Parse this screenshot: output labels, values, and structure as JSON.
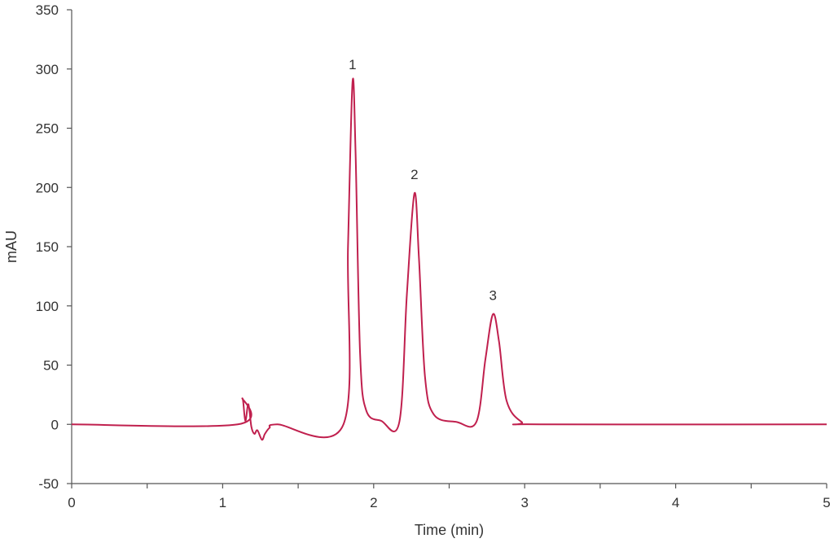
{
  "chart_data": {
    "type": "line",
    "title": "",
    "xlabel": "Time (min)",
    "ylabel": "mAU",
    "xlim": [
      0,
      5
    ],
    "ylim": [
      -50,
      350
    ],
    "x_ticks": [
      "0",
      "1",
      "2",
      "3",
      "4",
      "5"
    ],
    "x_minor_step": 0.5,
    "y_ticks": [
      "-50",
      "0",
      "50",
      "100",
      "150",
      "200",
      "250",
      "300",
      "350"
    ],
    "grid": false,
    "legend": "none",
    "line_color": "#c0204e",
    "series": [
      {
        "x": [
          0,
          1.1,
          1.13,
          1.15,
          1.17,
          1.19,
          1.21,
          1.23,
          1.26,
          1.28,
          1.31,
          1.36,
          1.8,
          1.83,
          1.86,
          1.88,
          1.91,
          1.95,
          2.05,
          2.17,
          2.22,
          2.27,
          2.3,
          2.34,
          2.4,
          2.55,
          2.68,
          2.74,
          2.79,
          2.83,
          2.88,
          2.98,
          3.1,
          5.0
        ],
        "y": [
          0,
          0,
          22,
          3,
          17,
          -2,
          -8,
          -5,
          -13,
          -8,
          -3,
          0,
          0,
          150,
          289,
          230,
          60,
          12,
          3,
          2,
          110,
          195,
          140,
          40,
          8,
          2,
          2,
          55,
          93,
          70,
          20,
          2,
          0,
          0
        ]
      }
    ],
    "annotations": [
      {
        "text": "1",
        "x": 1.86,
        "y": 300
      },
      {
        "text": "2",
        "x": 2.27,
        "y": 207
      },
      {
        "text": "3",
        "x": 2.79,
        "y": 105
      }
    ]
  }
}
